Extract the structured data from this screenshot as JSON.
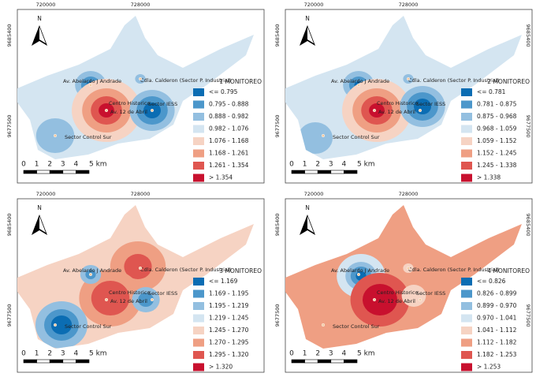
{
  "class_colors": [
    "#0b6db3",
    "#4c97cb",
    "#93bfe0",
    "#d4e5f1",
    "#f6d3c3",
    "#ef9f83",
    "#df5650",
    "#c8102e"
  ],
  "north": "N",
  "scale_labels": [
    "0",
    "1",
    "2",
    "3",
    "4",
    "5 km"
  ],
  "x_coords": [
    "720000",
    "728000"
  ],
  "y_coords": [
    "9685400",
    "9677500"
  ],
  "places": [
    "Av. Abelardo J Andrade",
    "Cdla. Calderon (Sector P. Industrial)",
    "Centro Historico",
    "Av. 12 de Abril",
    "Sector IESS",
    "Sector Control Sur"
  ],
  "panels": [
    {
      "title": "1 MONITOREO",
      "legend": [
        "<= 0.795",
        "0.795 - 0.888",
        "0.888 - 0.982",
        "0.982 - 1.076",
        "1.076 - 1.168",
        "1.168 - 1.261",
        "1.261 - 1.354",
        "> 1.354"
      ]
    },
    {
      "title": "2 MONITOREO",
      "legend": [
        "<= 0.781",
        "0.781 - 0.875",
        "0.875 - 0.968",
        "0.968 - 1.059",
        "1.059 - 1.152",
        "1.152 - 1.245",
        "1.245 - 1.338",
        "> 1.338"
      ]
    },
    {
      "title": "3 MONITOREO",
      "legend": [
        "<= 1.169",
        "1.169 - 1.195",
        "1.195 - 1.219",
        "1.219 - 1.245",
        "1.245 - 1.270",
        "1.270 - 1.295",
        "1.295 - 1.320",
        "> 1.320"
      ]
    },
    {
      "title": "4 MONITOREO",
      "legend": [
        "<= 0.826",
        "0.826 - 0.899",
        "0.899 - 0.970",
        "0.970 - 1.041",
        "1.041 - 1.112",
        "1.112 - 1.182",
        "1.182 - 1.253",
        "> 1.253"
      ]
    }
  ]
}
